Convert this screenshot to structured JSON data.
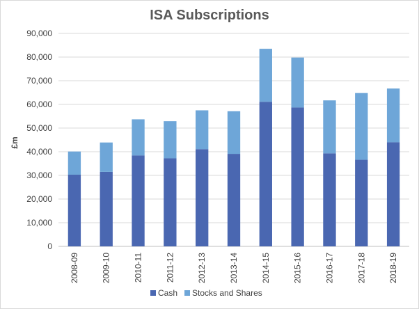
{
  "chart_data": {
    "type": "bar",
    "stacked": true,
    "title": "ISA Subscriptions",
    "xlabel": "",
    "ylabel": "£m",
    "ylim": [
      0,
      90000
    ],
    "yticks": [
      "0",
      "10,000",
      "20,000",
      "30,000",
      "40,000",
      "50,000",
      "60,000",
      "70,000",
      "80,000",
      "90,000"
    ],
    "categories": [
      "2008-09",
      "2009-10",
      "2010-11",
      "2011-12",
      "2012-13",
      "2013-14",
      "2014-15",
      "2015-16",
      "2016-17",
      "2017-18",
      "2018-19"
    ],
    "series": [
      {
        "name": "Cash",
        "color": "#4a67b1",
        "values": [
          30300,
          31500,
          38400,
          37200,
          41100,
          39100,
          61100,
          58700,
          39300,
          36600,
          44000
        ]
      },
      {
        "name": "Stocks and Shares",
        "color": "#6ea6d8",
        "values": [
          9800,
          12400,
          15300,
          15700,
          16400,
          18000,
          22400,
          21100,
          22400,
          28200,
          22700
        ]
      }
    ],
    "grid": true,
    "legend_position": "bottom"
  }
}
